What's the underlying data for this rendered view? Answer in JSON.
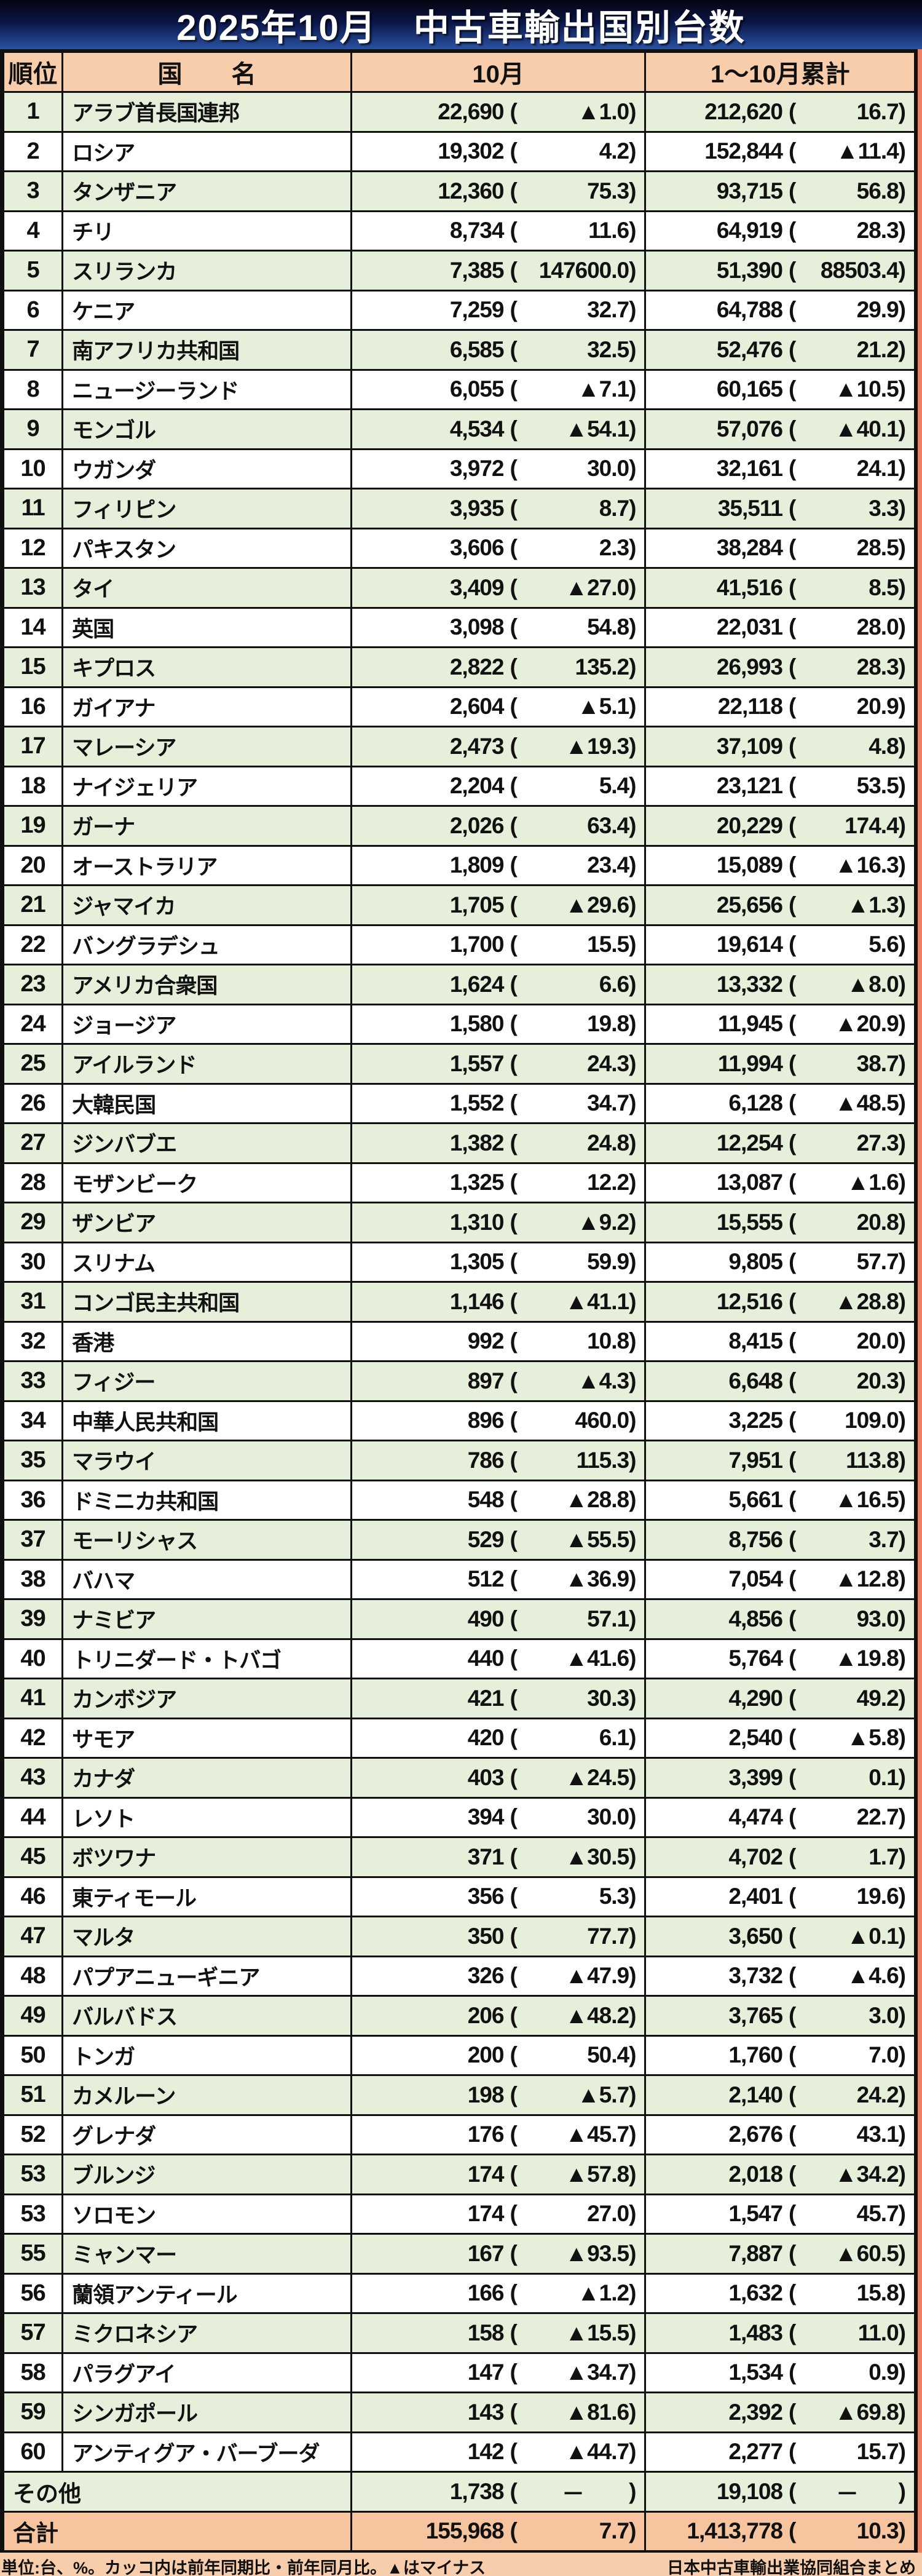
{
  "title": "2025年10月　中古車輸出国別台数",
  "footer": {
    "left": "単位:台、%。カッコ内は前年同期比・前年同月比。▲はマイナス",
    "right": "日本中古車輸出業協同組合まとめ"
  },
  "colors": {
    "title_gradient_top": "#04040e",
    "title_gradient_bottom": "#2a52a2",
    "header_bg": "#f8cdab",
    "row_green": "#e6efd9",
    "row_white": "#ffffff",
    "total_bg": "#f6c5a0",
    "right_edge_strip": "#ed7f63",
    "border": "#101010",
    "minus_mark": "▲"
  },
  "chart_data": {
    "type": "table",
    "title": "2025年10月 中古車輸出国別台数",
    "unit_note": "単位:台、%。カッコ内は前年同期比・前年同月比。▲はマイナス",
    "source": "日本中古車輸出業協同組合まとめ",
    "columns": {
      "rank": "順位",
      "country": "国　　名",
      "october": "10月",
      "cumulative": "1～10月累計"
    },
    "rows": [
      [
        "1",
        "アラブ首長国連邦",
        "22,690",
        "▲1.0",
        "212,620",
        "16.7"
      ],
      [
        "2",
        "ロシア",
        "19,302",
        "4.2",
        "152,844",
        "▲11.4"
      ],
      [
        "3",
        "タンザニア",
        "12,360",
        "75.3",
        "93,715",
        "56.8"
      ],
      [
        "4",
        "チリ",
        "8,734",
        "11.6",
        "64,919",
        "28.3"
      ],
      [
        "5",
        "スリランカ",
        "7,385",
        "147600.0",
        "51,390",
        "88503.4"
      ],
      [
        "6",
        "ケニア",
        "7,259",
        "32.7",
        "64,788",
        "29.9"
      ],
      [
        "7",
        "南アフリカ共和国",
        "6,585",
        "32.5",
        "52,476",
        "21.2"
      ],
      [
        "8",
        "ニュージーランド",
        "6,055",
        "▲7.1",
        "60,165",
        "▲10.5"
      ],
      [
        "9",
        "モンゴル",
        "4,534",
        "▲54.1",
        "57,076",
        "▲40.1"
      ],
      [
        "10",
        "ウガンダ",
        "3,972",
        "30.0",
        "32,161",
        "24.1"
      ],
      [
        "11",
        "フィリピン",
        "3,935",
        "8.7",
        "35,511",
        "3.3"
      ],
      [
        "12",
        "パキスタン",
        "3,606",
        "2.3",
        "38,284",
        "28.5"
      ],
      [
        "13",
        "タイ",
        "3,409",
        "▲27.0",
        "41,516",
        "8.5"
      ],
      [
        "14",
        "英国",
        "3,098",
        "54.8",
        "22,031",
        "28.0"
      ],
      [
        "15",
        "キプロス",
        "2,822",
        "135.2",
        "26,993",
        "28.3"
      ],
      [
        "16",
        "ガイアナ",
        "2,604",
        "▲5.1",
        "22,118",
        "20.9"
      ],
      [
        "17",
        "マレーシア",
        "2,473",
        "▲19.3",
        "37,109",
        "4.8"
      ],
      [
        "18",
        "ナイジェリア",
        "2,204",
        "5.4",
        "23,121",
        "53.5"
      ],
      [
        "19",
        "ガーナ",
        "2,026",
        "63.4",
        "20,229",
        "174.4"
      ],
      [
        "20",
        "オーストラリア",
        "1,809",
        "23.4",
        "15,089",
        "▲16.3"
      ],
      [
        "21",
        "ジャマイカ",
        "1,705",
        "▲29.6",
        "25,656",
        "▲1.3"
      ],
      [
        "22",
        "バングラデシュ",
        "1,700",
        "15.5",
        "19,614",
        "5.6"
      ],
      [
        "23",
        "アメリカ合衆国",
        "1,624",
        "6.6",
        "13,332",
        "▲8.0"
      ],
      [
        "24",
        "ジョージア",
        "1,580",
        "19.8",
        "11,945",
        "▲20.9"
      ],
      [
        "25",
        "アイルランド",
        "1,557",
        "24.3",
        "11,994",
        "38.7"
      ],
      [
        "26",
        "大韓民国",
        "1,552",
        "34.7",
        "6,128",
        "▲48.5"
      ],
      [
        "27",
        "ジンバブエ",
        "1,382",
        "24.8",
        "12,254",
        "27.3"
      ],
      [
        "28",
        "モザンビーク",
        "1,325",
        "12.2",
        "13,087",
        "▲1.6"
      ],
      [
        "29",
        "ザンビア",
        "1,310",
        "▲9.2",
        "15,555",
        "20.8"
      ],
      [
        "30",
        "スリナム",
        "1,305",
        "59.9",
        "9,805",
        "57.7"
      ],
      [
        "31",
        "コンゴ民主共和国",
        "1,146",
        "▲41.1",
        "12,516",
        "▲28.8"
      ],
      [
        "32",
        "香港",
        "992",
        "10.8",
        "8,415",
        "20.0"
      ],
      [
        "33",
        "フィジー",
        "897",
        "▲4.3",
        "6,648",
        "20.3"
      ],
      [
        "34",
        "中華人民共和国",
        "896",
        "460.0",
        "3,225",
        "109.0"
      ],
      [
        "35",
        "マラウイ",
        "786",
        "115.3",
        "7,951",
        "113.8"
      ],
      [
        "36",
        "ドミニカ共和国",
        "548",
        "▲28.8",
        "5,661",
        "▲16.5"
      ],
      [
        "37",
        "モーリシャス",
        "529",
        "▲55.5",
        "8,756",
        "3.7"
      ],
      [
        "38",
        "バハマ",
        "512",
        "▲36.9",
        "7,054",
        "▲12.8"
      ],
      [
        "39",
        "ナミビア",
        "490",
        "57.1",
        "4,856",
        "93.0"
      ],
      [
        "40",
        "トリニダード・トバゴ",
        "440",
        "▲41.6",
        "5,764",
        "▲19.8"
      ],
      [
        "41",
        "カンボジア",
        "421",
        "30.3",
        "4,290",
        "49.2"
      ],
      [
        "42",
        "サモア",
        "420",
        "6.1",
        "2,540",
        "▲5.8"
      ],
      [
        "43",
        "カナダ",
        "403",
        "▲24.5",
        "3,399",
        "0.1"
      ],
      [
        "44",
        "レソト",
        "394",
        "30.0",
        "4,474",
        "22.7"
      ],
      [
        "45",
        "ボツワナ",
        "371",
        "▲30.5",
        "4,702",
        "1.7"
      ],
      [
        "46",
        "東ティモール",
        "356",
        "5.3",
        "2,401",
        "19.6"
      ],
      [
        "47",
        "マルタ",
        "350",
        "77.7",
        "3,650",
        "▲0.1"
      ],
      [
        "48",
        "パプアニューギニア",
        "326",
        "▲47.9",
        "3,732",
        "▲4.6"
      ],
      [
        "49",
        "バルバドス",
        "206",
        "▲48.2",
        "3,765",
        "3.0"
      ],
      [
        "50",
        "トンガ",
        "200",
        "50.4",
        "1,760",
        "7.0"
      ],
      [
        "51",
        "カメルーン",
        "198",
        "▲5.7",
        "2,140",
        "24.2"
      ],
      [
        "52",
        "グレナダ",
        "176",
        "▲45.7",
        "2,676",
        "43.1"
      ],
      [
        "53",
        "ブルンジ",
        "174",
        "▲57.8",
        "2,018",
        "▲34.2"
      ],
      [
        "53",
        "ソロモン",
        "174",
        "27.0",
        "1,547",
        "45.7"
      ],
      [
        "55",
        "ミャンマー",
        "167",
        "▲93.5",
        "7,887",
        "▲60.5"
      ],
      [
        "56",
        "蘭領アンティール",
        "166",
        "▲1.2",
        "1,632",
        "15.8"
      ],
      [
        "57",
        "ミクロネシア",
        "158",
        "▲15.5",
        "1,483",
        "11.0"
      ],
      [
        "58",
        "パラグアイ",
        "147",
        "▲34.7",
        "1,534",
        "0.9"
      ],
      [
        "59",
        "シンガポール",
        "143",
        "▲81.6",
        "2,392",
        "▲69.8"
      ],
      [
        "60",
        "アンティグア・バーブーダ",
        "142",
        "▲44.7",
        "2,277",
        "15.7"
      ]
    ],
    "others_row": [
      "その他",
      "1,738",
      "－",
      "19,108",
      "－"
    ],
    "total_row": [
      "合計",
      "155,968",
      "7.7",
      "1,413,778",
      "10.3"
    ]
  }
}
